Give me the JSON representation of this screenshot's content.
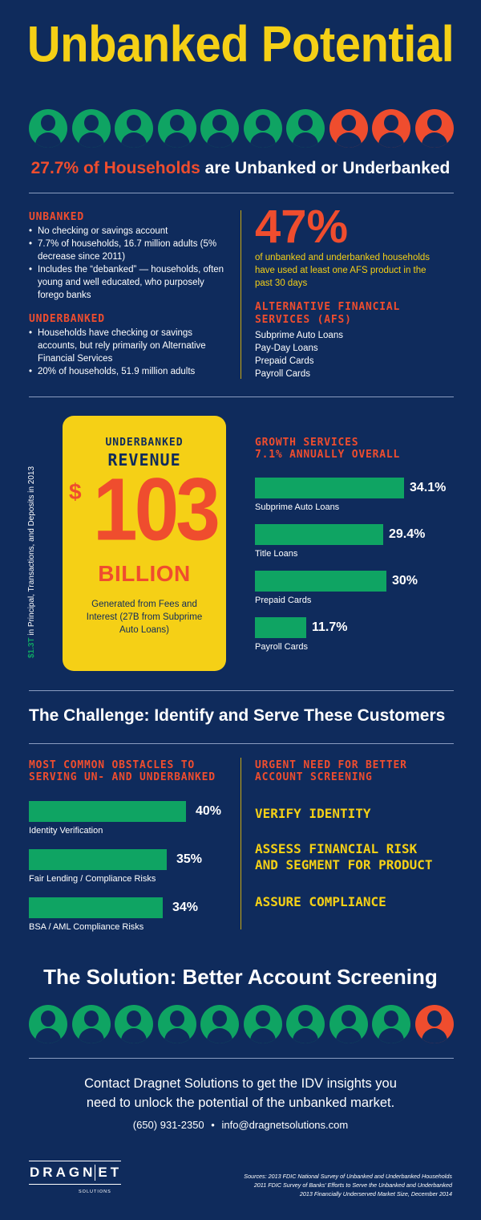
{
  "title": "Unbanked Potential",
  "people_top": [
    "green",
    "green",
    "green",
    "green",
    "green",
    "green",
    "green",
    "orange",
    "orange",
    "orange"
  ],
  "headline": {
    "highlight": "27.7% of Households",
    "rest": " are Unbanked or Underbanked"
  },
  "unbanked": {
    "heading": "UNBANKED",
    "items": [
      "No checking or savings account",
      "7.7% of households, 16.7 million adults (5% decrease since 2011)",
      "Includes the “debanked” — households, often young and well educated, who purposely forego banks"
    ]
  },
  "underbanked": {
    "heading": "UNDERBANKED",
    "items": [
      "Households have checking or savings accounts, but rely primarily on Alternative Financial Services",
      "20% of households, 51.9 million adults"
    ]
  },
  "afs_stat": {
    "value": "47%",
    "text": "of unbanked and underbanked households have used at least one AFS product in the past 30 days"
  },
  "afs": {
    "heading": "ALTERNATIVE FINANCIAL SERVICES (AFS)",
    "items": [
      "Subprime Auto Loans",
      "Pay-Day Loans",
      "Prepaid Cards",
      "Payroll Cards"
    ]
  },
  "side_note": {
    "highlight": "$1.3T",
    "rest": " in Principal, Transactions, and Deposits in 2013"
  },
  "revenue": {
    "line1": "UNDERBANKED",
    "line2": "REVENUE",
    "currency": "$",
    "amount": "103",
    "unit": "BILLION",
    "note": "Generated from Fees and Interest (27B from Subprime Auto Loans)"
  },
  "growth": {
    "heading_1": "GROWTH SERVICES",
    "heading_2": "7.1% ANNUALLY OVERALL",
    "bars": [
      {
        "label": "Subprime Auto Loans",
        "value": "34.1%",
        "pct": 34.1
      },
      {
        "label": "Title Loans",
        "value": "29.4%",
        "pct": 29.4
      },
      {
        "label": "Prepaid Cards",
        "value": "30%",
        "pct": 30
      },
      {
        "label": "Payroll Cards",
        "value": "11.7%",
        "pct": 11.7
      }
    ]
  },
  "challenge_title": "The Challenge: Identify and Serve These Customers",
  "obstacles": {
    "heading_1": "MOST COMMON OBSTACLES TO",
    "heading_2": "SERVING UN- AND UNDERBANKED",
    "bars": [
      {
        "label": "Identity Verification",
        "value": "40%",
        "pct": 40
      },
      {
        "label": "Fair Lending / Compliance Risks",
        "value": "35%",
        "pct": 35
      },
      {
        "label": "BSA / AML Compliance Risks",
        "value": "34%",
        "pct": 34
      }
    ]
  },
  "urgent": {
    "heading_1": "URGENT NEED FOR BETTER",
    "heading_2": "ACCOUNT SCREENING",
    "items": [
      "VERIFY IDENTITY",
      "ASSESS FINANCIAL RISK",
      "AND SEGMENT FOR PRODUCT",
      "ASSURE COMPLIANCE"
    ]
  },
  "solution_title": "The Solution: Better Account Screening",
  "people_bottom": [
    "green",
    "green",
    "green",
    "green",
    "green",
    "green",
    "green",
    "green",
    "green",
    "orange"
  ],
  "contact": {
    "line1": "Contact Dragnet Solutions to get the IDV insights you",
    "line2": "need to unlock the potential of the unbanked market.",
    "phone": "(650) 931-2350",
    "sep": "•",
    "email": "info@dragnetsolutions.com"
  },
  "logo": {
    "letters": [
      "D",
      "R",
      "A",
      "G",
      "N",
      "E",
      "T"
    ],
    "sub": "SOLUTIONS"
  },
  "sources": [
    "Sources: 2013 FDIC National Survey of Unbanked and Underbanked Households",
    "2011 FDIC Survey of Banks’ Efforts to Serve the Unbanked and Underbanked",
    "2013 Financially Underserved Market Size, December 2014"
  ],
  "colors": {
    "background": "#0f2b5c",
    "yellow": "#f5d016",
    "orange": "#ef4d2e",
    "green": "#0fa463"
  }
}
